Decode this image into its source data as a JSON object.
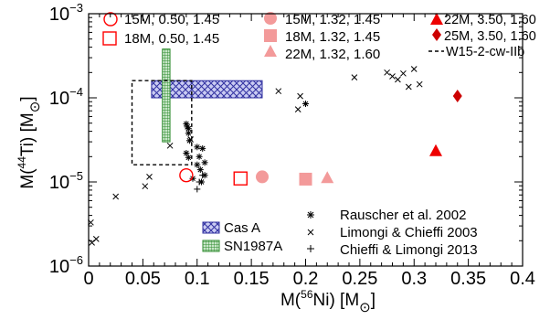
{
  "chart_data": {
    "type": "scatter",
    "title": "",
    "xlabel": {
      "prefix": "M(",
      "sup": "56",
      "mid": "Ni) [M",
      "sub": "⊙",
      "suffix": "]"
    },
    "ylabel": {
      "prefix": "M(",
      "sup": "44",
      "mid": "Ti) [M",
      "sub": "⊙",
      "suffix": "]"
    },
    "xlim": [
      0,
      0.4
    ],
    "ylim": [
      1e-06,
      0.001
    ],
    "yscale": "log",
    "xticks": [
      "0",
      "0.05",
      "0.1",
      "0.15",
      "0.2",
      "0.25",
      "0.3",
      "0.35",
      "0.4"
    ],
    "yticks": [
      {
        "base": "10",
        "exp": "−6"
      },
      {
        "base": "10",
        "exp": "−5"
      },
      {
        "base": "10",
        "exp": "−4"
      },
      {
        "base": "10",
        "exp": "−3"
      }
    ],
    "model_series": [
      {
        "name": "15M, 0.50, 1.45",
        "marker": "circle",
        "filled": false,
        "color": "#ff0000",
        "x": 0.09,
        "y": 1.2e-05
      },
      {
        "name": "18M, 0.50, 1.45",
        "marker": "square",
        "filled": false,
        "color": "#ff0000",
        "x": 0.14,
        "y": 1.1e-05
      },
      {
        "name": "15M, 1.32, 1.45",
        "marker": "circle",
        "filled": true,
        "color": "#f39a9a",
        "x": 0.16,
        "y": 1.15e-05
      },
      {
        "name": "18M, 1.32, 1.45",
        "marker": "square",
        "filled": true,
        "color": "#f39a9a",
        "x": 0.2,
        "y": 1.08e-05
      },
      {
        "name": "22M, 1.32, 1.60",
        "marker": "triangle",
        "filled": true,
        "color": "#f39a9a",
        "x": 0.22,
        "y": 1.1e-05
      },
      {
        "name": "22M, 3.50, 1.60",
        "marker": "triangle",
        "filled": true,
        "color": "#ee0000",
        "x": 0.32,
        "y": 2.3e-05
      },
      {
        "name": "25M, 3.50, 1.60",
        "marker": "diamond",
        "filled": true,
        "color": "#cc0000",
        "x": 0.34,
        "y": 0.000105
      }
    ],
    "box_series": {
      "name": "W15-2-cw-IIb",
      "style": "dashed",
      "x": [
        0.04,
        0.095
      ],
      "y": [
        1.6e-05,
        0.00016
      ]
    },
    "observations": [
      {
        "name": "Cas A",
        "pattern": "crosshatch",
        "color": "#3030a0",
        "x": [
          0.058,
          0.16
        ],
        "y": [
          0.0001,
          0.00016
        ]
      },
      {
        "name": "SN1987A",
        "pattern": "grid",
        "color": "#2e8b2e",
        "x": [
          0.068,
          0.075
        ],
        "y": [
          3e-05,
          0.00038
        ]
      }
    ],
    "literature_series": [
      {
        "name": "Rauscher et al. 2002",
        "marker": "asterisk",
        "points": [
          [
            0.09,
            4.9e-05
          ],
          [
            0.091,
            4.5e-05
          ],
          [
            0.092,
            4.3e-05
          ],
          [
            0.092,
            3.8e-05
          ],
          [
            0.09,
            2.2e-05
          ],
          [
            0.092,
            1.95e-05
          ],
          [
            0.093,
            3.1e-05
          ],
          [
            0.1,
            2.6e-05
          ],
          [
            0.102,
            2e-05
          ],
          [
            0.105,
            2.5e-05
          ],
          [
            0.107,
            1.7e-05
          ],
          [
            0.1,
            1.6e-05
          ],
          [
            0.103,
            1.4e-05
          ],
          [
            0.107,
            1.2e-05
          ],
          [
            0.104,
            1e-05
          ],
          [
            0.2,
            8.5e-05
          ],
          [
            0.096,
            1.1e-05
          ]
        ]
      },
      {
        "name": "Limongi & Chieffi 2003",
        "marker": "x",
        "points": [
          [
            0.002,
            3.3e-06
          ],
          [
            0.003,
            1.9e-06
          ],
          [
            0.007,
            2.1e-06
          ],
          [
            0.025,
            6.7e-06
          ],
          [
            0.052,
            8.9e-06
          ],
          [
            0.056,
            1.15e-05
          ],
          [
            0.075,
            2.7e-05
          ],
          [
            0.094,
            3.2e-05
          ],
          [
            0.175,
            0.00012
          ],
          [
            0.193,
            7.3e-05
          ],
          [
            0.195,
            0.000105
          ],
          [
            0.245,
            0.000175
          ],
          [
            0.275,
            0.0002
          ],
          [
            0.28,
            0.00018
          ],
          [
            0.285,
            0.000165
          ],
          [
            0.29,
            0.000195
          ],
          [
            0.295,
            0.000135
          ],
          [
            0.3,
            0.00022
          ],
          [
            0.305,
            0.000145
          ]
        ]
      },
      {
        "name": "Chieffi & Limongi 2013",
        "marker": "plus",
        "points": [
          [
            0.1,
            8.2e-06
          ],
          [
            0.102,
            1e-05
          ],
          [
            0.105,
            1.2e-05
          ]
        ]
      }
    ],
    "legends": {
      "models": "top-left",
      "literature": "bottom-right",
      "observations": "bottom-center"
    }
  }
}
